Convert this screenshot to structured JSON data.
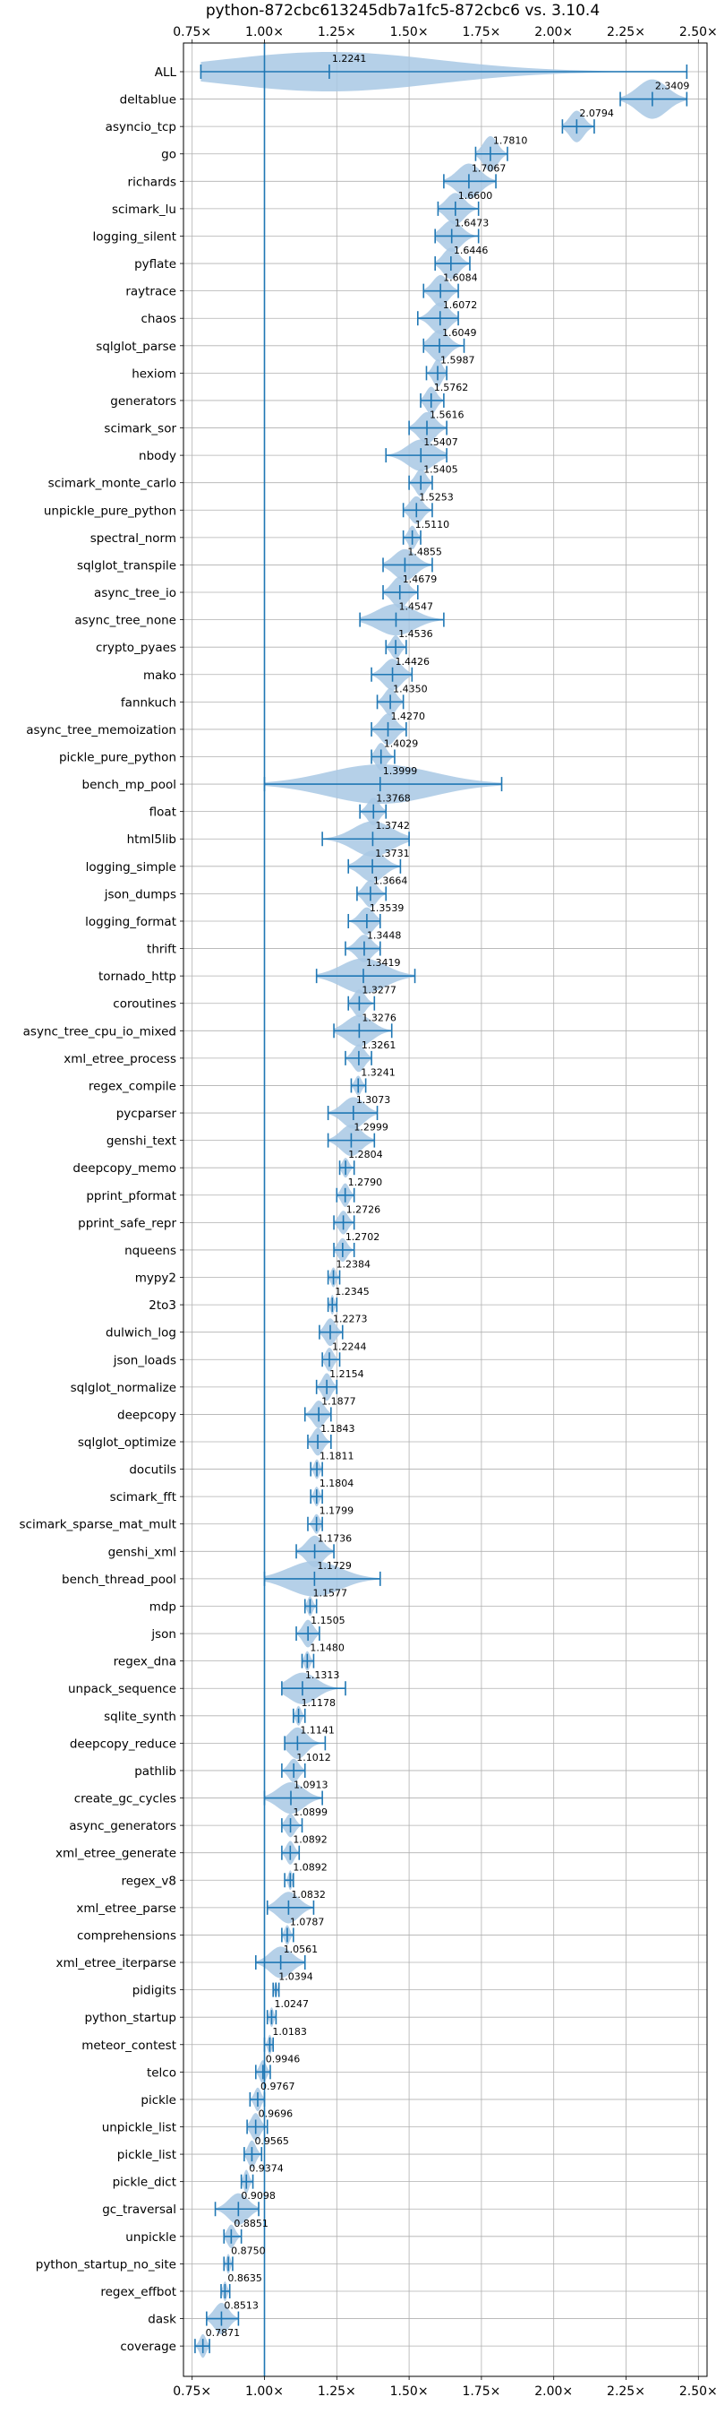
{
  "chart_data": {
    "type": "violin",
    "title": "python-872cbc613245db7a1fc5-872cbc6 vs. 3.10.4",
    "xlabel": "",
    "ylabel": "",
    "xlim": [
      0.72,
      2.53
    ],
    "x_ticks": [
      0.75,
      1.0,
      1.25,
      1.5,
      1.75,
      2.0,
      2.25,
      2.5
    ],
    "x_tick_labels": [
      "0.75×",
      "1.00×",
      "1.25×",
      "1.50×",
      "1.75×",
      "2.00×",
      "2.25×",
      "2.50×"
    ],
    "reference_line": 1.0,
    "grid": true,
    "colors": {
      "violin": "#a8c8e4",
      "stat": "#1f77b4",
      "grid": "#b0b0b0"
    },
    "series": [
      {
        "name": "ALL",
        "label": "1.2241",
        "value": 1.2241,
        "min": 0.78,
        "max": 2.46,
        "width": 1.0
      },
      {
        "name": "deltablue",
        "label": "2.3409",
        "value": 2.3409,
        "min": 2.23,
        "max": 2.46,
        "width": 1.0
      },
      {
        "name": "asyncio_tcp",
        "label": "2.0794",
        "value": 2.0794,
        "min": 2.03,
        "max": 2.14,
        "width": 0.8
      },
      {
        "name": "go",
        "label": "1.7810",
        "value": 1.781,
        "min": 1.73,
        "max": 1.84,
        "width": 0.9
      },
      {
        "name": "richards",
        "label": "1.7067",
        "value": 1.7067,
        "min": 1.62,
        "max": 1.8,
        "width": 0.9
      },
      {
        "name": "scimark_lu",
        "label": "1.6600",
        "value": 1.66,
        "min": 1.6,
        "max": 1.74,
        "width": 0.8
      },
      {
        "name": "logging_silent",
        "label": "1.6473",
        "value": 1.6473,
        "min": 1.59,
        "max": 1.74,
        "width": 0.8
      },
      {
        "name": "pyflate",
        "label": "1.6446",
        "value": 1.6446,
        "min": 1.59,
        "max": 1.71,
        "width": 0.8
      },
      {
        "name": "raytrace",
        "label": "1.6084",
        "value": 1.6084,
        "min": 1.55,
        "max": 1.67,
        "width": 0.8
      },
      {
        "name": "chaos",
        "label": "1.6072",
        "value": 1.6072,
        "min": 1.53,
        "max": 1.67,
        "width": 0.8
      },
      {
        "name": "sqlglot_parse",
        "label": "1.6049",
        "value": 1.6049,
        "min": 1.55,
        "max": 1.69,
        "width": 0.8
      },
      {
        "name": "hexiom",
        "label": "1.5987",
        "value": 1.5987,
        "min": 1.56,
        "max": 1.63,
        "width": 0.7
      },
      {
        "name": "generators",
        "label": "1.5762",
        "value": 1.5762,
        "min": 1.54,
        "max": 1.62,
        "width": 0.7
      },
      {
        "name": "scimark_sor",
        "label": "1.5616",
        "value": 1.5616,
        "min": 1.5,
        "max": 1.63,
        "width": 0.8
      },
      {
        "name": "nbody",
        "label": "1.5407",
        "value": 1.5407,
        "min": 1.42,
        "max": 1.63,
        "width": 0.8
      },
      {
        "name": "scimark_monte_carlo",
        "label": "1.5405",
        "value": 1.5405,
        "min": 1.5,
        "max": 1.58,
        "width": 0.7
      },
      {
        "name": "unpickle_pure_python",
        "label": "1.5253",
        "value": 1.5253,
        "min": 1.48,
        "max": 1.58,
        "width": 0.7
      },
      {
        "name": "spectral_norm",
        "label": "1.5110",
        "value": 1.511,
        "min": 1.48,
        "max": 1.54,
        "width": 0.6
      },
      {
        "name": "sqlglot_transpile",
        "label": "1.4855",
        "value": 1.4855,
        "min": 1.41,
        "max": 1.58,
        "width": 0.8
      },
      {
        "name": "async_tree_io",
        "label": "1.4679",
        "value": 1.4679,
        "min": 1.41,
        "max": 1.53,
        "width": 0.8
      },
      {
        "name": "async_tree_none",
        "label": "1.4547",
        "value": 1.4547,
        "min": 1.33,
        "max": 1.62,
        "width": 0.8
      },
      {
        "name": "crypto_pyaes",
        "label": "1.4536",
        "value": 1.4536,
        "min": 1.42,
        "max": 1.49,
        "width": 0.6
      },
      {
        "name": "mako",
        "label": "1.4426",
        "value": 1.4426,
        "min": 1.37,
        "max": 1.51,
        "width": 0.8
      },
      {
        "name": "fannkuch",
        "label": "1.4350",
        "value": 1.435,
        "min": 1.39,
        "max": 1.48,
        "width": 0.7
      },
      {
        "name": "async_tree_memoization",
        "label": "1.4270",
        "value": 1.427,
        "min": 1.37,
        "max": 1.49,
        "width": 0.8
      },
      {
        "name": "pickle_pure_python",
        "label": "1.4029",
        "value": 1.4029,
        "min": 1.37,
        "max": 1.45,
        "width": 0.7
      },
      {
        "name": "bench_mp_pool",
        "label": "1.3999",
        "value": 1.3999,
        "min": 1.0,
        "max": 1.82,
        "width": 1.0
      },
      {
        "name": "float",
        "label": "1.3768",
        "value": 1.3768,
        "min": 1.33,
        "max": 1.42,
        "width": 0.7
      },
      {
        "name": "html5lib",
        "label": "1.3742",
        "value": 1.3742,
        "min": 1.2,
        "max": 1.5,
        "width": 0.9
      },
      {
        "name": "logging_simple",
        "label": "1.3731",
        "value": 1.3731,
        "min": 1.29,
        "max": 1.47,
        "width": 0.8
      },
      {
        "name": "json_dumps",
        "label": "1.3664",
        "value": 1.3664,
        "min": 1.32,
        "max": 1.42,
        "width": 0.7
      },
      {
        "name": "logging_format",
        "label": "1.3539",
        "value": 1.3539,
        "min": 1.29,
        "max": 1.4,
        "width": 0.7
      },
      {
        "name": "thrift",
        "label": "1.3448",
        "value": 1.3448,
        "min": 1.28,
        "max": 1.4,
        "width": 0.7
      },
      {
        "name": "tornado_http",
        "label": "1.3419",
        "value": 1.3419,
        "min": 1.18,
        "max": 1.52,
        "width": 0.9
      },
      {
        "name": "coroutines",
        "label": "1.3277",
        "value": 1.3277,
        "min": 1.29,
        "max": 1.38,
        "width": 0.7
      },
      {
        "name": "async_tree_cpu_io_mixed",
        "label": "1.3276",
        "value": 1.3276,
        "min": 1.24,
        "max": 1.44,
        "width": 0.8
      },
      {
        "name": "xml_etree_process",
        "label": "1.3261",
        "value": 1.3261,
        "min": 1.28,
        "max": 1.37,
        "width": 0.7
      },
      {
        "name": "regex_compile",
        "label": "1.3241",
        "value": 1.3241,
        "min": 1.3,
        "max": 1.35,
        "width": 0.5
      },
      {
        "name": "pycparser",
        "label": "1.3073",
        "value": 1.3073,
        "min": 1.22,
        "max": 1.39,
        "width": 0.8
      },
      {
        "name": "genshi_text",
        "label": "1.2999",
        "value": 1.2999,
        "min": 1.22,
        "max": 1.38,
        "width": 0.8
      },
      {
        "name": "deepcopy_memo",
        "label": "1.2804",
        "value": 1.2804,
        "min": 1.26,
        "max": 1.31,
        "width": 0.5
      },
      {
        "name": "pprint_pformat",
        "label": "1.2790",
        "value": 1.279,
        "min": 1.25,
        "max": 1.31,
        "width": 0.6
      },
      {
        "name": "pprint_safe_repr",
        "label": "1.2726",
        "value": 1.2726,
        "min": 1.24,
        "max": 1.31,
        "width": 0.6
      },
      {
        "name": "nqueens",
        "label": "1.2702",
        "value": 1.2702,
        "min": 1.24,
        "max": 1.31,
        "width": 0.6
      },
      {
        "name": "mypy2",
        "label": "1.2384",
        "value": 1.2384,
        "min": 1.22,
        "max": 1.26,
        "width": 0.5
      },
      {
        "name": "2to3",
        "label": "1.2345",
        "value": 1.2345,
        "min": 1.22,
        "max": 1.25,
        "width": 0.5
      },
      {
        "name": "dulwich_log",
        "label": "1.2273",
        "value": 1.2273,
        "min": 1.19,
        "max": 1.27,
        "width": 0.7
      },
      {
        "name": "json_loads",
        "label": "1.2244",
        "value": 1.2244,
        "min": 1.2,
        "max": 1.26,
        "width": 0.6
      },
      {
        "name": "sqlglot_normalize",
        "label": "1.2154",
        "value": 1.2154,
        "min": 1.18,
        "max": 1.25,
        "width": 0.7
      },
      {
        "name": "deepcopy",
        "label": "1.1877",
        "value": 1.1877,
        "min": 1.14,
        "max": 1.23,
        "width": 0.7
      },
      {
        "name": "sqlglot_optimize",
        "label": "1.1843",
        "value": 1.1843,
        "min": 1.15,
        "max": 1.23,
        "width": 0.7
      },
      {
        "name": "docutils",
        "label": "1.1811",
        "value": 1.1811,
        "min": 1.16,
        "max": 1.2,
        "width": 0.5
      },
      {
        "name": "scimark_fft",
        "label": "1.1804",
        "value": 1.1804,
        "min": 1.16,
        "max": 1.2,
        "width": 0.5
      },
      {
        "name": "scimark_sparse_mat_mult",
        "label": "1.1799",
        "value": 1.1799,
        "min": 1.15,
        "max": 1.2,
        "width": 0.5
      },
      {
        "name": "genshi_xml",
        "label": "1.1736",
        "value": 1.1736,
        "min": 1.11,
        "max": 1.24,
        "width": 0.8
      },
      {
        "name": "bench_thread_pool",
        "label": "1.1729",
        "value": 1.1729,
        "min": 1.0,
        "max": 1.4,
        "width": 0.9
      },
      {
        "name": "mdp",
        "label": "1.1577",
        "value": 1.1577,
        "min": 1.14,
        "max": 1.18,
        "width": 0.5
      },
      {
        "name": "json",
        "label": "1.1505",
        "value": 1.1505,
        "min": 1.11,
        "max": 1.19,
        "width": 0.7
      },
      {
        "name": "regex_dna",
        "label": "1.1480",
        "value": 1.148,
        "min": 1.13,
        "max": 1.17,
        "width": 0.5
      },
      {
        "name": "unpack_sequence",
        "label": "1.1313",
        "value": 1.1313,
        "min": 1.06,
        "max": 1.28,
        "width": 0.8
      },
      {
        "name": "sqlite_synth",
        "label": "1.1178",
        "value": 1.1178,
        "min": 1.1,
        "max": 1.14,
        "width": 0.5
      },
      {
        "name": "deepcopy_reduce",
        "label": "1.1141",
        "value": 1.1141,
        "min": 1.07,
        "max": 1.21,
        "width": 0.8
      },
      {
        "name": "pathlib",
        "label": "1.1012",
        "value": 1.1012,
        "min": 1.06,
        "max": 1.14,
        "width": 0.6
      },
      {
        "name": "create_gc_cycles",
        "label": "1.0913",
        "value": 1.0913,
        "min": 1.0,
        "max": 1.2,
        "width": 0.8
      },
      {
        "name": "async_generators",
        "label": "1.0899",
        "value": 1.0899,
        "min": 1.06,
        "max": 1.13,
        "width": 0.6
      },
      {
        "name": "xml_etree_generate",
        "label": "1.0892",
        "value": 1.0892,
        "min": 1.06,
        "max": 1.12,
        "width": 0.6
      },
      {
        "name": "regex_v8",
        "label": "1.0892",
        "value": 1.0892,
        "min": 1.07,
        "max": 1.1,
        "width": 0.5
      },
      {
        "name": "xml_etree_parse",
        "label": "1.0832",
        "value": 1.0832,
        "min": 1.01,
        "max": 1.17,
        "width": 0.8
      },
      {
        "name": "comprehensions",
        "label": "1.0787",
        "value": 1.0787,
        "min": 1.06,
        "max": 1.1,
        "width": 0.5
      },
      {
        "name": "xml_etree_iterparse",
        "label": "1.0561",
        "value": 1.0561,
        "min": 0.97,
        "max": 1.14,
        "width": 0.8
      },
      {
        "name": "pidigits",
        "label": "1.0394",
        "value": 1.0394,
        "min": 1.03,
        "max": 1.05,
        "width": 0.4
      },
      {
        "name": "python_startup",
        "label": "1.0247",
        "value": 1.0247,
        "min": 1.01,
        "max": 1.04,
        "width": 0.5
      },
      {
        "name": "meteor_contest",
        "label": "1.0183",
        "value": 1.0183,
        "min": 1.0,
        "max": 1.03,
        "width": 0.5
      },
      {
        "name": "telco",
        "label": "0.9946",
        "value": 0.9946,
        "min": 0.97,
        "max": 1.02,
        "width": 0.6
      },
      {
        "name": "pickle",
        "label": "0.9767",
        "value": 0.9767,
        "min": 0.95,
        "max": 1.0,
        "width": 0.6
      },
      {
        "name": "unpickle_list",
        "label": "0.9696",
        "value": 0.9696,
        "min": 0.94,
        "max": 1.01,
        "width": 0.7
      },
      {
        "name": "pickle_list",
        "label": "0.9565",
        "value": 0.9565,
        "min": 0.93,
        "max": 0.99,
        "width": 0.7
      },
      {
        "name": "pickle_dict",
        "label": "0.9374",
        "value": 0.9374,
        "min": 0.92,
        "max": 0.96,
        "width": 0.6
      },
      {
        "name": "gc_traversal",
        "label": "0.9098",
        "value": 0.9098,
        "min": 0.83,
        "max": 0.98,
        "width": 0.8
      },
      {
        "name": "unpickle",
        "label": "0.8851",
        "value": 0.8851,
        "min": 0.86,
        "max": 0.92,
        "width": 0.6
      },
      {
        "name": "python_startup_no_site",
        "label": "0.8750",
        "value": 0.875,
        "min": 0.86,
        "max": 0.89,
        "width": 0.5
      },
      {
        "name": "regex_effbot",
        "label": "0.8635",
        "value": 0.8635,
        "min": 0.85,
        "max": 0.88,
        "width": 0.5
      },
      {
        "name": "dask",
        "label": "0.8513",
        "value": 0.8513,
        "min": 0.8,
        "max": 0.91,
        "width": 0.8
      },
      {
        "name": "coverage",
        "label": "0.7871",
        "value": 0.7871,
        "min": 0.76,
        "max": 0.81,
        "width": 0.6
      }
    ]
  }
}
